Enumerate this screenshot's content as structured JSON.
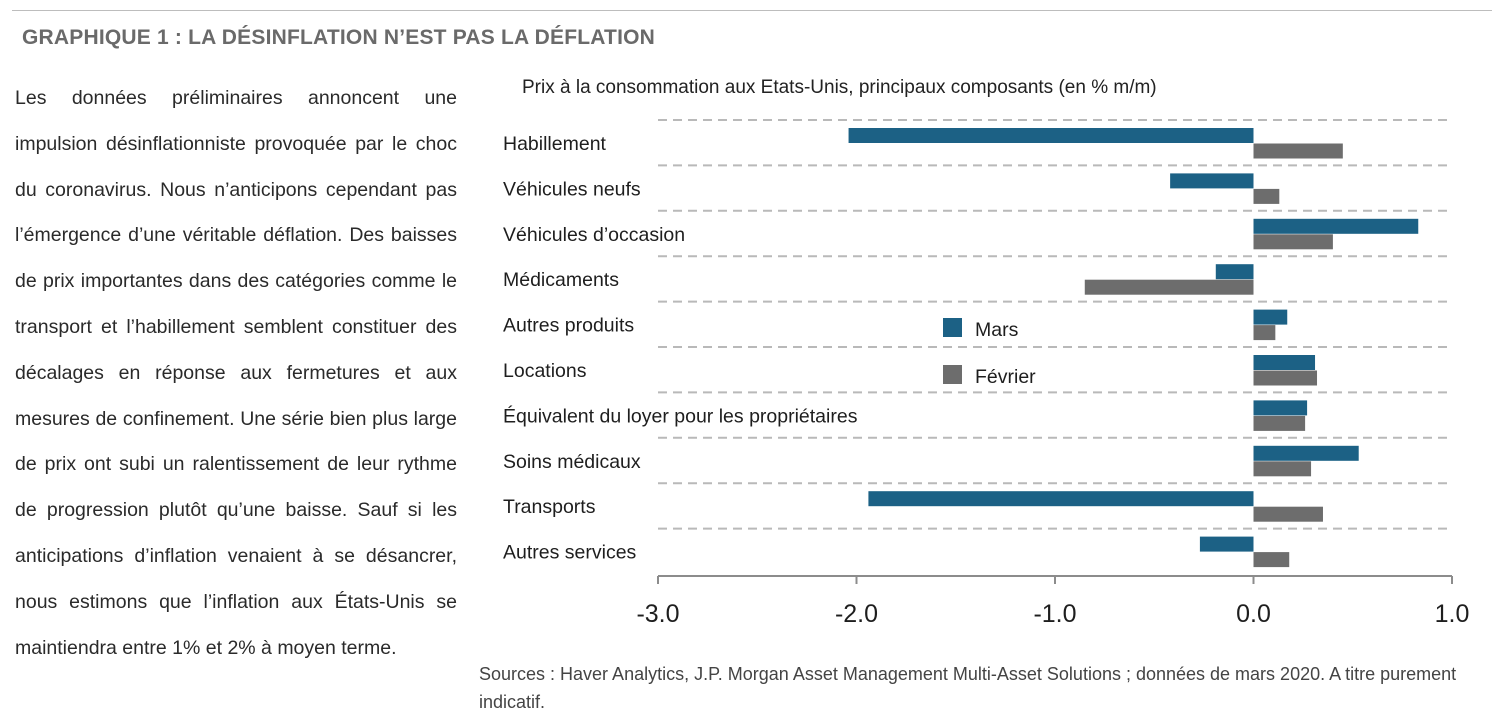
{
  "heading": "GRAPHIQUE 1 : LA DÉSINFLATION N’EST PAS LA DÉFLATION",
  "body_text": "Les données préliminaires annoncent une impulsion désinflationniste provoquée par le choc du coronavirus. Nous n’anticipons cependant pas l’émergence d’une véritable déflation. Des baisses de prix importantes dans des catégories comme le transport et l’habillement semblent constituer des décalages en réponse aux fermetures et aux mesures de confinement. Une série bien plus large de prix ont subi un ralentissement de leur rythme de progression plutôt qu’une baisse. Sauf si les anticipations d’inflation venaient à se désancrer, nous estimons que l’inflation aux États-Unis se maintiendra entre 1% et 2% à moyen terme.",
  "source": "Sources : Haver Analytics, J.P. Morgan Asset Management Multi-Asset Solutions ; données de mars 2020.  A titre purement indicatif.",
  "chart_data": {
    "type": "bar",
    "orientation": "horizontal",
    "title": "Prix à la consommation aux Etats-Unis,  principaux composants (en % m/m)",
    "categories": [
      "Habillement",
      "Véhicules neufs",
      "Véhicules d’occasion",
      "Médicaments",
      "Autres produits",
      "Locations",
      "Équivalent du loyer pour les propriétaires",
      "Soins médicaux",
      "Transports",
      "Autres services"
    ],
    "series": [
      {
        "name": "Mars",
        "color": "#1c6185",
        "values": [
          -2.04,
          -0.42,
          0.83,
          -0.19,
          0.17,
          0.31,
          0.27,
          0.53,
          -1.94,
          -0.27
        ]
      },
      {
        "name": "Février",
        "color": "#6d6d6d",
        "values": [
          0.45,
          0.13,
          0.4,
          -0.85,
          0.11,
          0.32,
          0.26,
          0.29,
          0.35,
          0.18
        ]
      }
    ],
    "xlim": [
      -3.0,
      1.0
    ],
    "xticks": [
      "-3.0",
      "-2.0",
      "-1.0",
      "0.0",
      "1.0"
    ],
    "grid": "dashed horizontal separators",
    "legend_position": "center"
  }
}
